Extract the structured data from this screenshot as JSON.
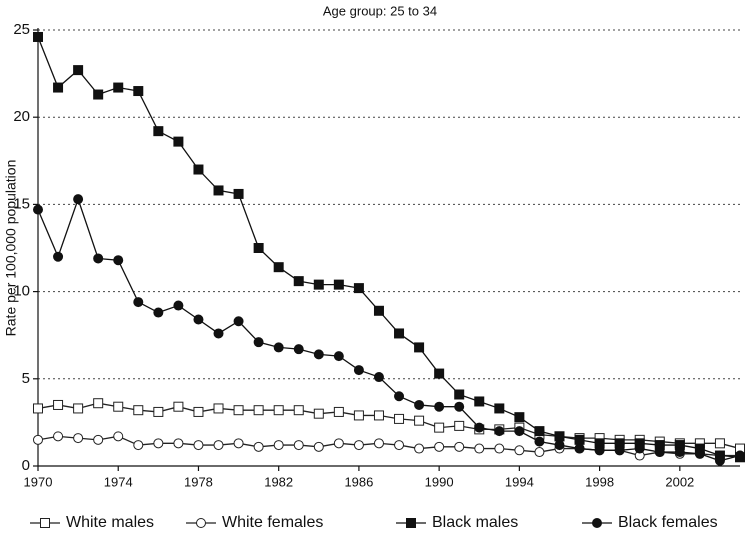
{
  "chart_data": {
    "type": "line",
    "title": "Age group: 25 to 34",
    "y_label": "Rate per 100,000 population",
    "x": [
      1970,
      1971,
      1972,
      1973,
      1974,
      1975,
      1976,
      1977,
      1978,
      1979,
      1980,
      1981,
      1982,
      1983,
      1984,
      1985,
      1986,
      1987,
      1988,
      1989,
      1990,
      1991,
      1992,
      1993,
      1994,
      1995,
      1996,
      1997,
      1998,
      1999,
      2000,
      2001,
      2002,
      2003,
      2004,
      2005
    ],
    "xlim": [
      1970,
      2005
    ],
    "xticks": [
      1970,
      1974,
      1978,
      1982,
      1986,
      1990,
      1994,
      1998,
      2002
    ],
    "ylim": [
      0,
      25
    ],
    "yticks": [
      0,
      5,
      10,
      15,
      20,
      25
    ],
    "grid": true,
    "series": [
      {
        "name": "White males",
        "color": "#222222",
        "marker": "square",
        "filled": false,
        "values": [
          3.3,
          3.5,
          3.3,
          3.6,
          3.4,
          3.2,
          3.1,
          3.4,
          3.1,
          3.3,
          3.2,
          3.2,
          3.2,
          3.2,
          3.0,
          3.1,
          2.9,
          2.9,
          2.7,
          2.6,
          2.2,
          2.3,
          2.1,
          2.1,
          2.2,
          1.8,
          1.7,
          1.6,
          1.6,
          1.5,
          1.5,
          1.4,
          1.3,
          1.3,
          1.3,
          1.0
        ]
      },
      {
        "name": "White females",
        "color": "#222222",
        "marker": "circle",
        "filled": false,
        "values": [
          1.5,
          1.7,
          1.6,
          1.5,
          1.7,
          1.2,
          1.3,
          1.3,
          1.2,
          1.2,
          1.3,
          1.1,
          1.2,
          1.2,
          1.1,
          1.3,
          1.2,
          1.3,
          1.2,
          1.0,
          1.1,
          1.1,
          1.0,
          1.0,
          0.9,
          0.8,
          1.0,
          1.0,
          0.9,
          0.9,
          0.6,
          0.8,
          0.7,
          0.7,
          0.6,
          0.6
        ]
      },
      {
        "name": "Black males",
        "color": "#111111",
        "marker": "square",
        "filled": true,
        "values": [
          24.6,
          21.7,
          22.7,
          21.3,
          21.7,
          21.5,
          19.2,
          18.6,
          17.0,
          15.8,
          15.6,
          12.5,
          11.4,
          10.6,
          10.4,
          10.4,
          10.2,
          8.9,
          7.6,
          6.8,
          5.3,
          4.1,
          3.7,
          3.3,
          2.8,
          2.0,
          1.7,
          1.5,
          1.3,
          1.3,
          1.3,
          1.2,
          1.2,
          1.0,
          0.6,
          0.5
        ]
      },
      {
        "name": "Black females",
        "color": "#111111",
        "marker": "circle",
        "filled": true,
        "values": [
          14.7,
          12.0,
          15.3,
          11.9,
          11.8,
          9.4,
          8.8,
          9.2,
          8.4,
          7.6,
          8.3,
          7.1,
          6.8,
          6.7,
          6.4,
          6.3,
          5.5,
          5.1,
          4.0,
          3.5,
          3.4,
          3.4,
          2.2,
          2.0,
          2.0,
          1.4,
          1.2,
          1.0,
          0.9,
          0.9,
          1.0,
          0.8,
          0.8,
          0.7,
          0.3,
          0.6
        ]
      }
    ],
    "legend": "bottom"
  }
}
